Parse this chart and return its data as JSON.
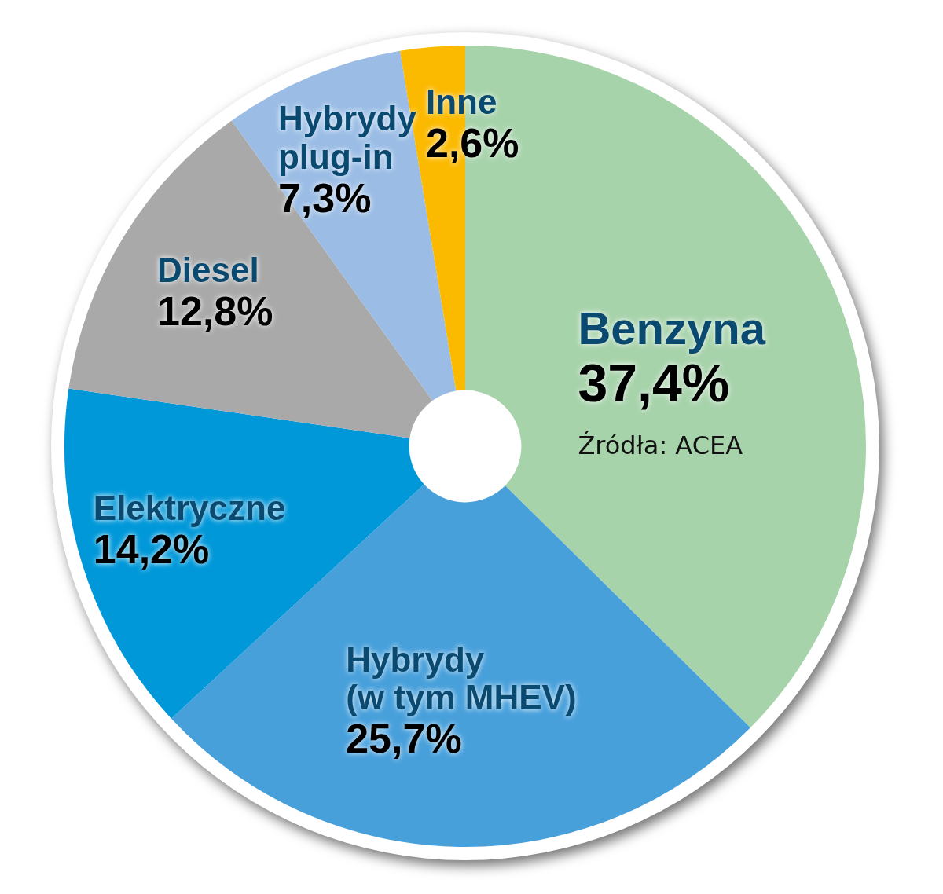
{
  "chart_data": {
    "type": "donut",
    "categories": [
      "Benzyna",
      "Hybrydy (w tym MHEV)",
      "Elektryczne",
      "Diesel",
      "Hybrydy plug-in",
      "Inne"
    ],
    "values": [
      37.4,
      25.7,
      14.2,
      12.8,
      7.3,
      2.6
    ],
    "colors": [
      "#a7d3ab",
      "#48a0db",
      "#0098d9",
      "#a9a9a9",
      "#9bbde5",
      "#fbb900"
    ],
    "value_labels": [
      "37,4%",
      "25,7%",
      "14,2%",
      "12,8%",
      "7,3%",
      "2,6%"
    ],
    "annotations": [
      "Źródła: ACEA"
    ]
  }
}
